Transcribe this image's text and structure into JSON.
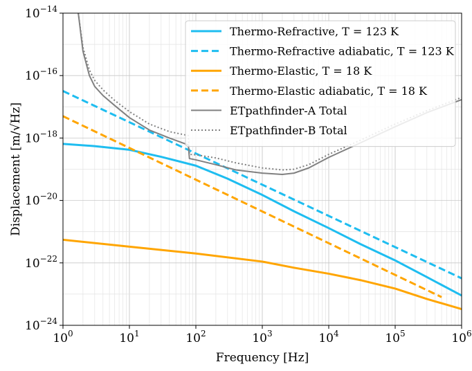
{
  "chart_data": {
    "type": "line",
    "xlabel": "Frequency [Hz]",
    "ylabel": "Displacement [m/√Hz]",
    "xscale": "log",
    "yscale": "log",
    "xlim": [
      1,
      1000000
    ],
    "ylim": [
      1e-24,
      1e-14
    ],
    "grid": true,
    "legend_position": "top-right",
    "x_ticks": [
      {
        "value": 1,
        "mantissa": "10",
        "exp": "0"
      },
      {
        "value": 10,
        "mantissa": "10",
        "exp": "1"
      },
      {
        "value": 100,
        "mantissa": "10",
        "exp": "2"
      },
      {
        "value": 1000,
        "mantissa": "10",
        "exp": "3"
      },
      {
        "value": 10000,
        "mantissa": "10",
        "exp": "4"
      },
      {
        "value": 100000,
        "mantissa": "10",
        "exp": "5"
      },
      {
        "value": 1000000,
        "mantissa": "10",
        "exp": "6"
      }
    ],
    "y_ticks": [
      {
        "value": 1e-24,
        "mantissa": "10",
        "exp": "−24"
      },
      {
        "value": 1e-22,
        "mantissa": "10",
        "exp": "−22"
      },
      {
        "value": 1e-20,
        "mantissa": "10",
        "exp": "−20"
      },
      {
        "value": 1e-18,
        "mantissa": "10",
        "exp": "−18"
      },
      {
        "value": 1e-16,
        "mantissa": "10",
        "exp": "−16"
      },
      {
        "value": 1e-14,
        "mantissa": "10",
        "exp": "−14"
      }
    ],
    "series": [
      {
        "name": "Thermo-Refractive, T = 123 K",
        "color": "#1ebdf0",
        "style": "solid",
        "points": [
          [
            1,
            6.5e-19
          ],
          [
            3,
            5.5e-19
          ],
          [
            10,
            4.2e-19
          ],
          [
            30,
            2.5e-19
          ],
          [
            100,
            1.3e-19
          ],
          [
            300,
            5e-20
          ],
          [
            1000,
            1.5e-20
          ],
          [
            3000,
            4.5e-21
          ],
          [
            10000,
            1.3e-21
          ],
          [
            30000,
            4e-22
          ],
          [
            100000,
            1.2e-22
          ],
          [
            300000,
            3.5e-23
          ],
          [
            1000000,
            9e-24
          ]
        ]
      },
      {
        "name": "Thermo-Refractive adiabatic, T = 123 K",
        "color": "#1ebdf0",
        "style": "dashed",
        "points": [
          [
            1,
            3.2e-17
          ],
          [
            1000000,
            3.2e-23
          ]
        ]
      },
      {
        "name": "Thermo-Elastic, T = 18 K",
        "color": "#ffa500",
        "style": "solid",
        "points": [
          [
            1,
            5.5e-22
          ],
          [
            10,
            3.3e-22
          ],
          [
            100,
            2e-22
          ],
          [
            1000,
            1.1e-22
          ],
          [
            3000,
            7e-23
          ],
          [
            10000,
            4.5e-23
          ],
          [
            30000,
            2.8e-23
          ],
          [
            100000,
            1.5e-23
          ],
          [
            300000,
            7e-24
          ],
          [
            1000000,
            3.3e-24
          ]
        ]
      },
      {
        "name": "Thermo-Elastic adiabatic, T = 18 K",
        "color": "#ffa500",
        "style": "dashed",
        "points": [
          [
            1,
            5e-18
          ],
          [
            500000,
            8e-24
          ]
        ]
      },
      {
        "name": "ETpathfinder-A Total",
        "color": "#808080",
        "style": "solid",
        "points": [
          [
            1.7,
            1e-14
          ],
          [
            2,
            6e-16
          ],
          [
            2.5,
            1e-16
          ],
          [
            3,
            4.5e-17
          ],
          [
            4,
            2.3e-17
          ],
          [
            6,
            1.1e-17
          ],
          [
            10,
            4.5e-18
          ],
          [
            20,
            1.8e-18
          ],
          [
            40,
            1e-18
          ],
          [
            77,
            6e-19
          ],
          [
            80,
            2.2e-19
          ],
          [
            100,
            2e-19
          ],
          [
            200,
            1.4e-19
          ],
          [
            400,
            9.5e-20
          ],
          [
            1000,
            7.5e-20
          ],
          [
            2000,
            6.8e-20
          ],
          [
            3000,
            7.5e-20
          ],
          [
            5000,
            1.1e-19
          ],
          [
            10000,
            2.4e-19
          ],
          [
            30000,
            7e-19
          ],
          [
            100000,
            2.3e-18
          ],
          [
            300000,
            6.5e-18
          ],
          [
            1000000,
            1.7e-17
          ]
        ]
      },
      {
        "name": "ETpathfinder-B Total",
        "color": "#808080",
        "style": "dotted",
        "points": [
          [
            1.7,
            1e-14
          ],
          [
            2,
            8e-16
          ],
          [
            2.5,
            1.5e-16
          ],
          [
            3,
            7e-17
          ],
          [
            4,
            3.5e-17
          ],
          [
            6,
            1.6e-17
          ],
          [
            10,
            7e-18
          ],
          [
            20,
            2.8e-18
          ],
          [
            40,
            1.6e-18
          ],
          [
            77,
            1.2e-18
          ],
          [
            80,
            3e-19
          ],
          [
            100,
            2.9e-19
          ],
          [
            200,
            2.3e-19
          ],
          [
            400,
            1.6e-19
          ],
          [
            1000,
            1.1e-19
          ],
          [
            2000,
            9.5e-20
          ],
          [
            3000,
            1e-19
          ],
          [
            5000,
            1.4e-19
          ],
          [
            10000,
            3e-19
          ],
          [
            30000,
            8.5e-19
          ],
          [
            100000,
            2.8e-18
          ],
          [
            300000,
            7.5e-18
          ],
          [
            1000000,
            2e-17
          ]
        ]
      }
    ]
  }
}
